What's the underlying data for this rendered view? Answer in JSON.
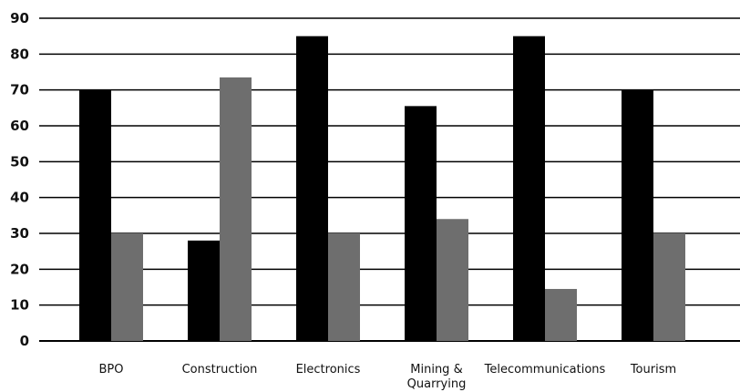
{
  "chart_data": {
    "type": "bar",
    "title": "",
    "xlabel": "",
    "ylabel": "",
    "ylim": [
      0,
      90
    ],
    "yticks": [
      0,
      10,
      20,
      30,
      40,
      50,
      60,
      70,
      80,
      90
    ],
    "grid": true,
    "categories": [
      [
        "BPO"
      ],
      [
        "Construction"
      ],
      [
        "Electronics"
      ],
      [
        "Mining &",
        "Quarrying"
      ],
      [
        "Telecommunications"
      ],
      [
        "Tourism"
      ]
    ],
    "series": [
      {
        "values": [
          70,
          28,
          85,
          65.5,
          85,
          70
        ],
        "color": "#000000"
      },
      {
        "values": [
          30,
          73.5,
          30,
          34,
          14.5,
          30
        ],
        "color": "#6e6e6e"
      }
    ]
  }
}
